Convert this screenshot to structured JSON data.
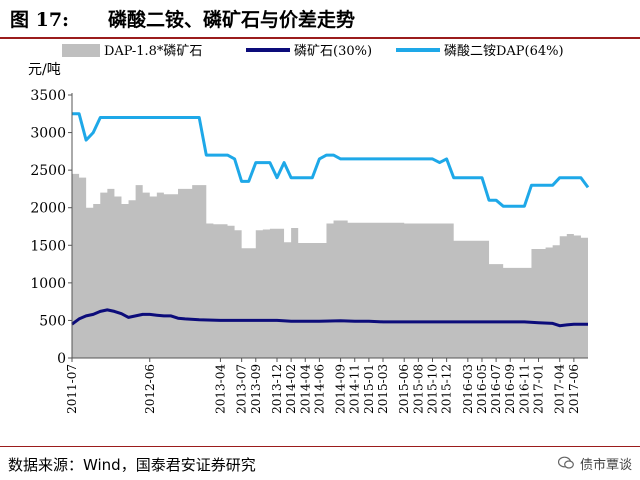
{
  "figure": {
    "number": "图 17:",
    "title": "磷酸二铵、磷矿石与价差走势",
    "source": "数据来源：Wind，国泰君安证券研究",
    "watermark": "债市覃谈",
    "watermark_icon": "chat-bubble-icon"
  },
  "colors": {
    "spread_fill": "#bfbfbf",
    "phosphate_rock_line": "#0c0c7a",
    "dap_line": "#1ea8e8",
    "rule": "#9b1c1c"
  },
  "chart_data": {
    "type": "line",
    "unit_label": "元/吨",
    "ylim": [
      0,
      3500
    ],
    "yticks": [
      0,
      500,
      1000,
      1500,
      2000,
      2500,
      3000,
      3500
    ],
    "xlim": [
      "2011-07",
      "2017-08"
    ],
    "xticks": [
      "2011-07",
      "2012-06",
      "2013-04",
      "2013-07",
      "2013-09",
      "2013-12",
      "2014-02",
      "2014-04",
      "2014-06",
      "2014-09",
      "2014-11",
      "2015-01",
      "2015-03",
      "2015-06",
      "2015-08",
      "2015-10",
      "2015-12",
      "2016-03",
      "2016-05",
      "2016-07",
      "2016-09",
      "2016-11",
      "2017-01",
      "2017-04",
      "2017-06"
    ],
    "grid": false,
    "legend": {
      "position": "top"
    },
    "series": [
      {
        "name": "DAP-1.8*磷矿石",
        "kind": "area",
        "points": [
          [
            "2011-07",
            2450
          ],
          [
            "2011-08",
            2400
          ],
          [
            "2011-09",
            2000
          ],
          [
            "2011-10",
            2050
          ],
          [
            "2011-11",
            2200
          ],
          [
            "2011-12",
            2250
          ],
          [
            "2012-01",
            2150
          ],
          [
            "2012-02",
            2050
          ],
          [
            "2012-03",
            2100
          ],
          [
            "2012-04",
            2300
          ],
          [
            "2012-05",
            2200
          ],
          [
            "2012-06",
            2150
          ],
          [
            "2012-07",
            2200
          ],
          [
            "2012-08",
            2180
          ],
          [
            "2012-09",
            2180
          ],
          [
            "2012-10",
            2250
          ],
          [
            "2012-11",
            2250
          ],
          [
            "2012-12",
            2300
          ],
          [
            "2013-01",
            2300
          ],
          [
            "2013-02",
            1790
          ],
          [
            "2013-03",
            1780
          ],
          [
            "2013-04",
            1780
          ],
          [
            "2013-05",
            1760
          ],
          [
            "2013-06",
            1700
          ],
          [
            "2013-07",
            1460
          ],
          [
            "2013-08",
            1460
          ],
          [
            "2013-09",
            1700
          ],
          [
            "2013-10",
            1710
          ],
          [
            "2013-11",
            1720
          ],
          [
            "2013-12",
            1720
          ],
          [
            "2014-01",
            1540
          ],
          [
            "2014-02",
            1730
          ],
          [
            "2014-03",
            1530
          ],
          [
            "2014-04",
            1530
          ],
          [
            "2014-05",
            1530
          ],
          [
            "2014-06",
            1530
          ],
          [
            "2014-07",
            1790
          ],
          [
            "2014-08",
            1830
          ],
          [
            "2014-09",
            1830
          ],
          [
            "2014-10",
            1800
          ],
          [
            "2014-11",
            1800
          ],
          [
            "2014-12",
            1800
          ],
          [
            "2015-01",
            1800
          ],
          [
            "2015-03",
            1800
          ],
          [
            "2015-06",
            1790
          ],
          [
            "2015-09",
            1790
          ],
          [
            "2015-12",
            1790
          ],
          [
            "2016-01",
            1560
          ],
          [
            "2016-03",
            1560
          ],
          [
            "2016-05",
            1560
          ],
          [
            "2016-06",
            1250
          ],
          [
            "2016-07",
            1250
          ],
          [
            "2016-08",
            1200
          ],
          [
            "2016-09",
            1200
          ],
          [
            "2016-10",
            1200
          ],
          [
            "2016-11",
            1200
          ],
          [
            "2016-12",
            1450
          ],
          [
            "2017-01",
            1450
          ],
          [
            "2017-02",
            1470
          ],
          [
            "2017-03",
            1500
          ],
          [
            "2017-04",
            1620
          ],
          [
            "2017-05",
            1650
          ],
          [
            "2017-06",
            1630
          ],
          [
            "2017-07",
            1600
          ],
          [
            "2017-08",
            1500
          ]
        ]
      },
      {
        "name": "磷矿石(30%)",
        "kind": "line",
        "points": [
          [
            "2011-07",
            450
          ],
          [
            "2011-08",
            520
          ],
          [
            "2011-09",
            560
          ],
          [
            "2011-10",
            580
          ],
          [
            "2011-11",
            620
          ],
          [
            "2011-12",
            640
          ],
          [
            "2012-01",
            620
          ],
          [
            "2012-02",
            590
          ],
          [
            "2012-03",
            540
          ],
          [
            "2012-04",
            560
          ],
          [
            "2012-05",
            580
          ],
          [
            "2012-06",
            580
          ],
          [
            "2012-07",
            570
          ],
          [
            "2012-08",
            560
          ],
          [
            "2012-09",
            560
          ],
          [
            "2012-10",
            530
          ],
          [
            "2012-11",
            520
          ],
          [
            "2013-01",
            510
          ],
          [
            "2013-04",
            500
          ],
          [
            "2013-07",
            500
          ],
          [
            "2013-09",
            500
          ],
          [
            "2013-12",
            500
          ],
          [
            "2014-02",
            490
          ],
          [
            "2014-06",
            490
          ],
          [
            "2014-09",
            495
          ],
          [
            "2014-11",
            490
          ],
          [
            "2015-01",
            490
          ],
          [
            "2015-03",
            480
          ],
          [
            "2015-06",
            480
          ],
          [
            "2015-10",
            480
          ],
          [
            "2016-01",
            480
          ],
          [
            "2016-06",
            480
          ],
          [
            "2016-11",
            480
          ],
          [
            "2017-01",
            470
          ],
          [
            "2017-03",
            460
          ],
          [
            "2017-04",
            430
          ],
          [
            "2017-05",
            440
          ],
          [
            "2017-06",
            450
          ],
          [
            "2017-08",
            450
          ]
        ]
      },
      {
        "name": "磷酸二铵DAP(64%)",
        "kind": "line",
        "points": [
          [
            "2011-07",
            3250
          ],
          [
            "2011-08",
            3250
          ],
          [
            "2011-09",
            2900
          ],
          [
            "2011-10",
            3000
          ],
          [
            "2011-11",
            3200
          ],
          [
            "2012-02",
            3200
          ],
          [
            "2012-06",
            3200
          ],
          [
            "2013-01",
            3200
          ],
          [
            "2013-02",
            2700
          ],
          [
            "2013-05",
            2700
          ],
          [
            "2013-06",
            2650
          ],
          [
            "2013-07",
            2350
          ],
          [
            "2013-08",
            2350
          ],
          [
            "2013-09",
            2600
          ],
          [
            "2013-11",
            2600
          ],
          [
            "2013-12",
            2400
          ],
          [
            "2014-01",
            2600
          ],
          [
            "2014-02",
            2400
          ],
          [
            "2014-05",
            2400
          ],
          [
            "2014-06",
            2650
          ],
          [
            "2014-07",
            2700
          ],
          [
            "2014-08",
            2700
          ],
          [
            "2014-09",
            2650
          ],
          [
            "2015-01",
            2650
          ],
          [
            "2015-06",
            2650
          ],
          [
            "2015-10",
            2650
          ],
          [
            "2015-11",
            2600
          ],
          [
            "2015-12",
            2650
          ],
          [
            "2016-01",
            2400
          ],
          [
            "2016-05",
            2400
          ],
          [
            "2016-06",
            2100
          ],
          [
            "2016-07",
            2100
          ],
          [
            "2016-08",
            2020
          ],
          [
            "2016-11",
            2020
          ],
          [
            "2016-12",
            2300
          ],
          [
            "2017-03",
            2300
          ],
          [
            "2017-04",
            2400
          ],
          [
            "2017-07",
            2400
          ],
          [
            "2017-08",
            2270
          ]
        ]
      }
    ]
  }
}
